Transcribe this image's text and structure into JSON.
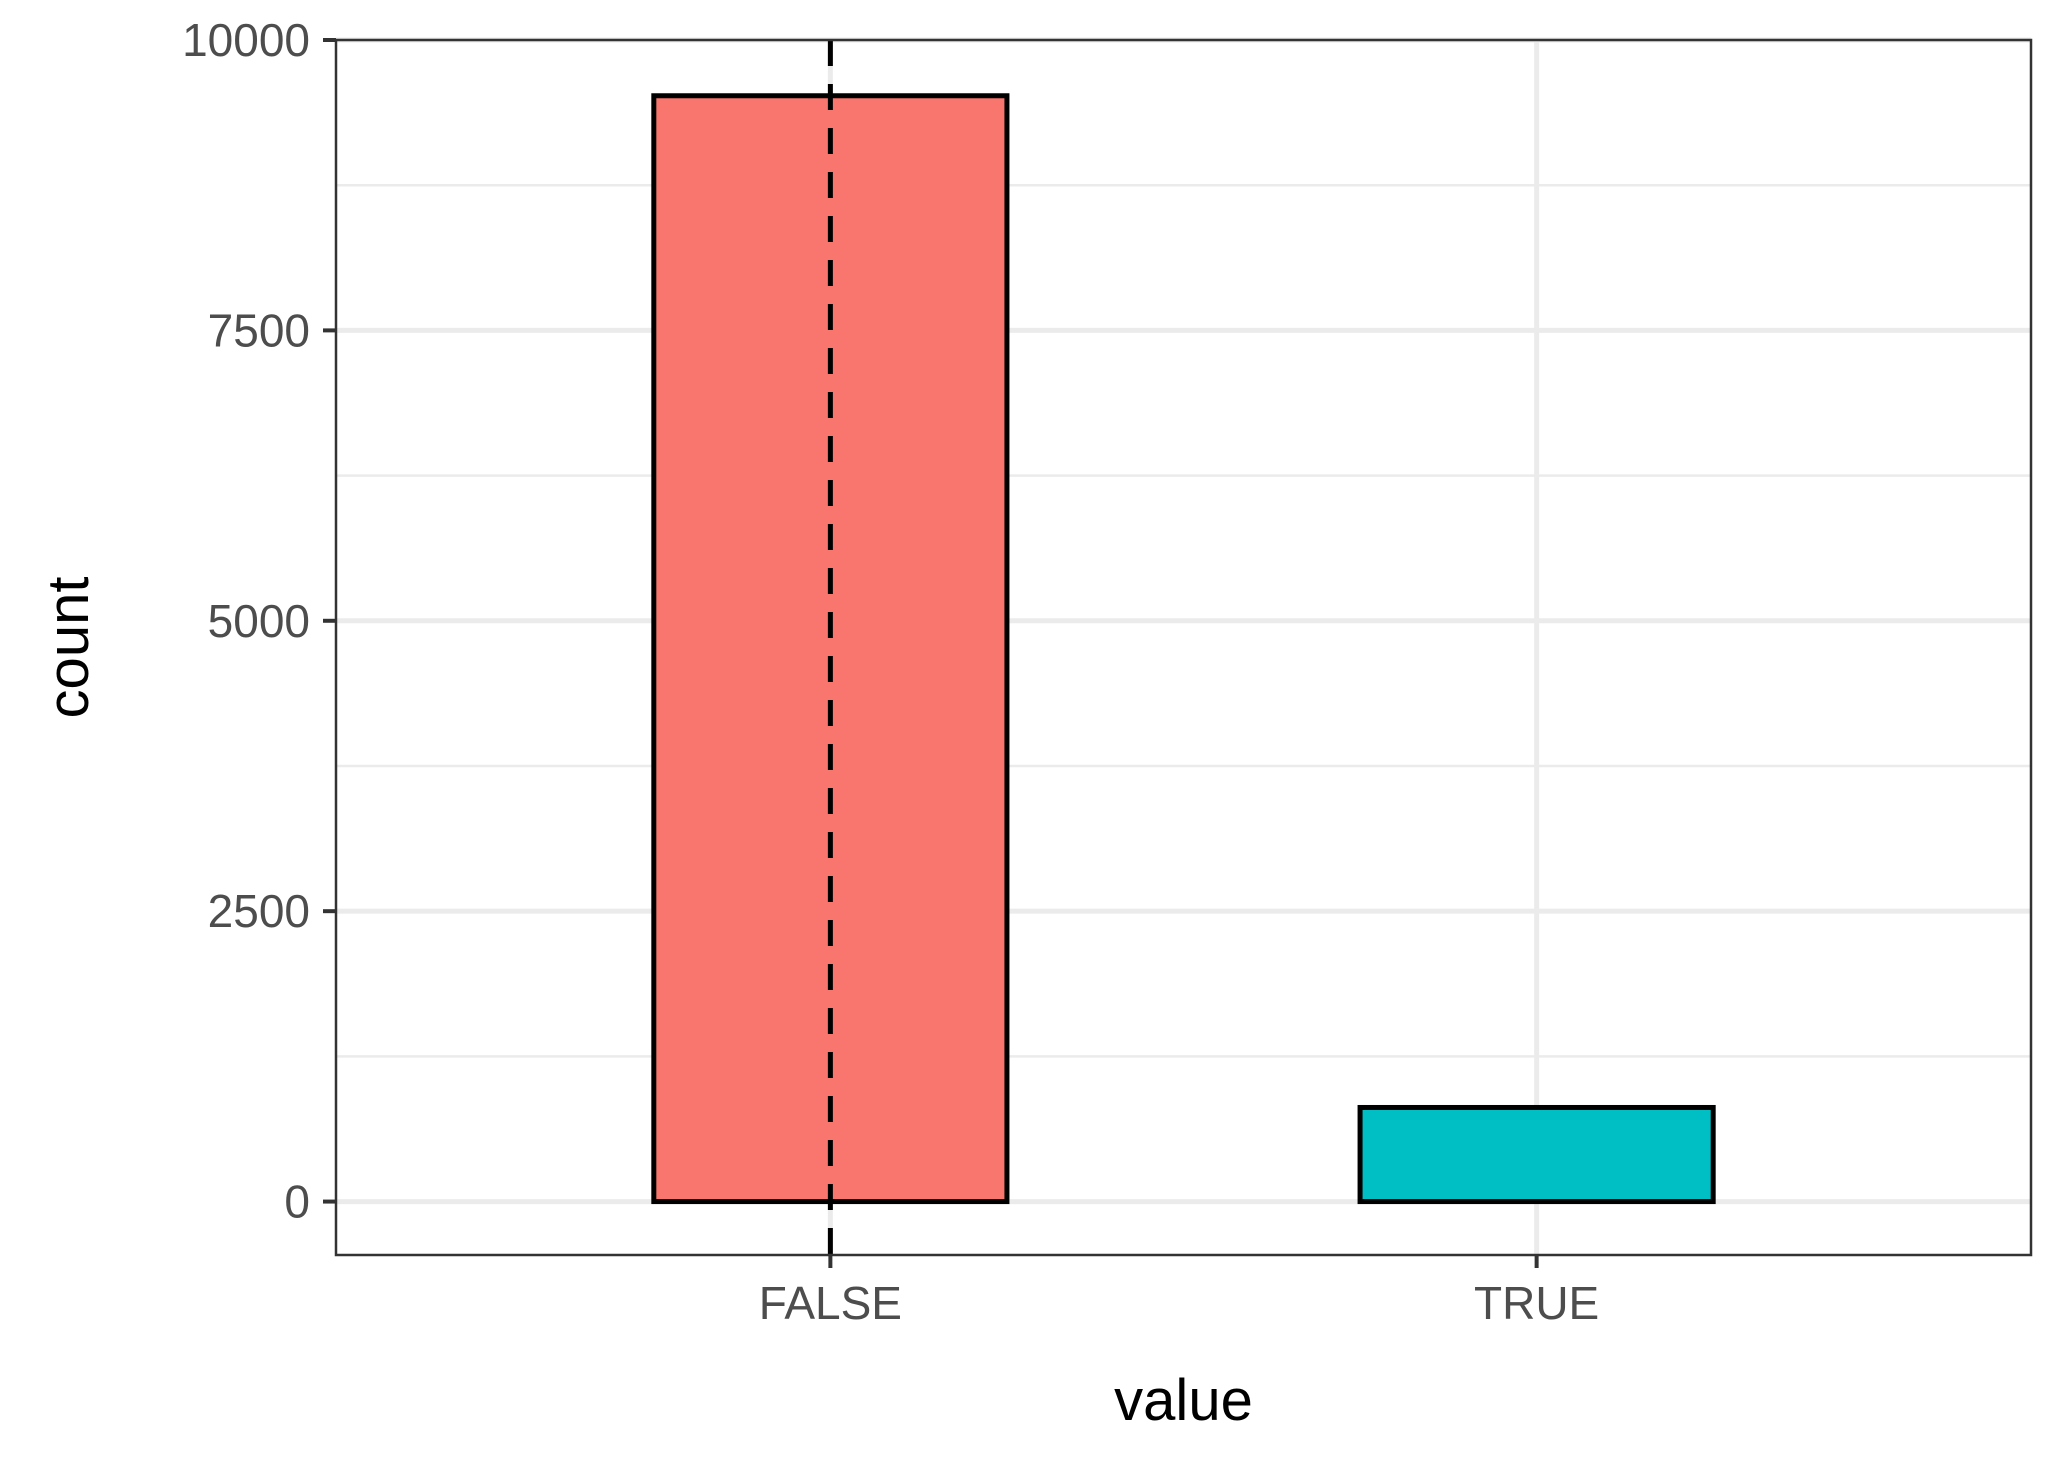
{
  "chart_data": {
    "type": "bar",
    "title": "",
    "xlabel": "value",
    "ylabel": "count",
    "categories": [
      "FALSE",
      "TRUE"
    ],
    "values": [
      9520,
      810
    ],
    "colors": [
      "#F8766D",
      "#00BFC4"
    ],
    "bar_outline_color": "#000000",
    "ylim": [
      -460,
      10000
    ],
    "yticks": [
      0,
      2500,
      5000,
      7500,
      10000
    ],
    "yticks_minor": [
      1250,
      3750,
      6250,
      8750
    ],
    "ytick_labels": [
      "0",
      "2500",
      "5000",
      "7500",
      "10000"
    ],
    "vline": {
      "x": "FALSE",
      "style": "dashed",
      "color": "#000000"
    },
    "grid": true,
    "legend": "none",
    "theme": "bw"
  }
}
